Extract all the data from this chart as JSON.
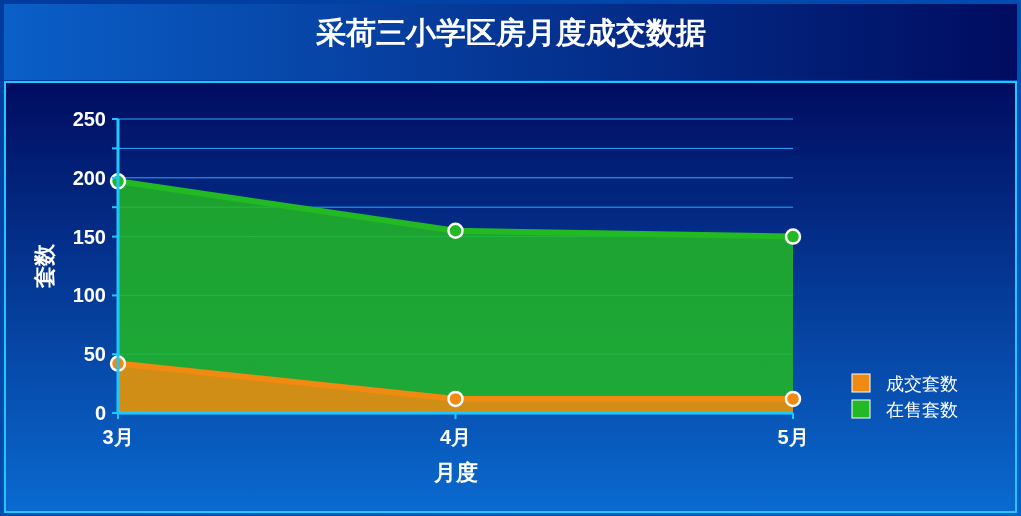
{
  "chart_data": {
    "type": "area",
    "title": "采荷三小学区房月度成交数据",
    "xlabel": "月度",
    "ylabel": "套数",
    "categories": [
      "3月",
      "4月",
      "5月"
    ],
    "series": [
      {
        "name": "在售套数",
        "color": "#22b922",
        "values": [
          197,
          155,
          150
        ]
      },
      {
        "name": "成交套数",
        "color": "#f08a10",
        "values": [
          42,
          12,
          12
        ]
      }
    ],
    "ylim": [
      0,
      250
    ],
    "yticks": [
      0,
      50,
      100,
      150,
      {
        "value": 175,
        "label": null
      },
      200,
      {
        "value": 225,
        "label": null
      },
      250
    ],
    "grid": "y",
    "legend": "right",
    "marker": "circle"
  }
}
